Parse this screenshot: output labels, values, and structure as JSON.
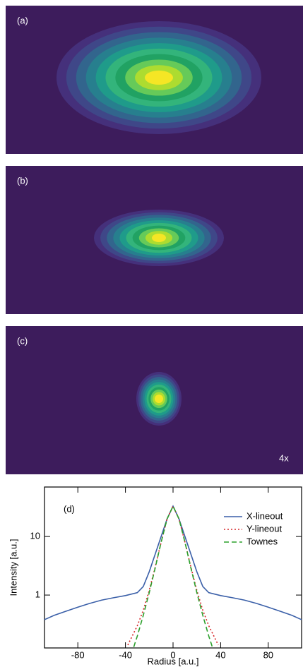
{
  "panels": [
    {
      "label": "(a)"
    },
    {
      "label": "(b)"
    },
    {
      "label": "(c)",
      "note": "4x"
    }
  ],
  "chart_data": {
    "type": "line",
    "label": "(d)",
    "x_label": "Radius [a.u.]",
    "y_label": "Intensity [a.u.]",
    "xlim": [
      -108,
      108
    ],
    "xticks": [
      -80,
      -40,
      0,
      40,
      80
    ],
    "ylim": [
      0.125,
      70
    ],
    "yticks": [
      1,
      10
    ],
    "yscale": "log",
    "legend": "top-right",
    "series": [
      {
        "name": "X-lineout",
        "color": "#3a5fa8",
        "dash": "solid",
        "x": [
          -108,
          -100,
          -90,
          -80,
          -70,
          -60,
          -50,
          -40,
          -30,
          -25,
          -20,
          -15,
          -10,
          -5,
          0,
          5,
          10,
          15,
          20,
          25,
          30,
          40,
          50,
          60,
          70,
          80,
          90,
          100,
          108
        ],
        "values": [
          0.38,
          0.45,
          0.53,
          0.62,
          0.72,
          0.82,
          0.9,
          0.98,
          1.1,
          1.4,
          2.5,
          5,
          10,
          20,
          33,
          20,
          10,
          5,
          2.5,
          1.4,
          1.1,
          0.98,
          0.9,
          0.82,
          0.72,
          0.62,
          0.53,
          0.45,
          0.38
        ]
      },
      {
        "name": "Y-lineout",
        "color": "#d62728",
        "dash": "dotted",
        "x": [
          -38,
          -30,
          -25,
          -20,
          -15,
          -10,
          -5,
          0,
          5,
          10,
          15,
          20,
          25,
          30,
          38
        ],
        "values": [
          0.14,
          0.3,
          0.55,
          1.2,
          3,
          8,
          20,
          33,
          20,
          8,
          3,
          1.2,
          0.55,
          0.3,
          0.14
        ]
      },
      {
        "name": "Townes",
        "color": "#2ca02c",
        "dash": "dashed",
        "x": [
          -33,
          -30,
          -25,
          -20,
          -15,
          -10,
          -5,
          0,
          5,
          10,
          15,
          20,
          25,
          30,
          33
        ],
        "values": [
          0.13,
          0.2,
          0.45,
          1.1,
          2.9,
          8,
          20,
          33,
          20,
          8,
          2.9,
          1.1,
          0.45,
          0.2,
          0.13
        ]
      }
    ]
  }
}
